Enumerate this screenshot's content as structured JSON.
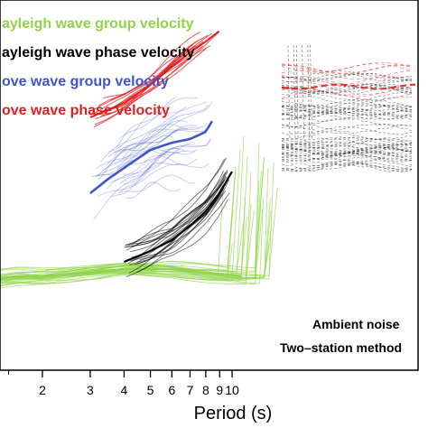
{
  "chart_data": {
    "type": "line",
    "title": "",
    "xlabel": "Period (s)",
    "ylabel": "",
    "x_scale": "log",
    "xlim": [
      1.25,
      20
    ],
    "x_ticks": [
      2,
      3,
      4,
      5,
      6,
      7,
      8,
      9,
      10
    ],
    "x_tick_labels": [
      "2",
      "3",
      "4",
      "5",
      "6",
      "7",
      "8",
      "9",
      "10"
    ],
    "y_axis_shown": false,
    "grid": false,
    "legend_position": "top-left",
    "legend": [
      {
        "label": "ayleigh wave group velocity",
        "color": "#8fd44a"
      },
      {
        "label": "ayleigh wave phase velocity",
        "color": "#000000"
      },
      {
        "label": "ove wave group velocity",
        "color": "#4055c8"
      },
      {
        "label": "ove wave phase velocity",
        "color": "#e02020"
      }
    ],
    "annotations": [
      "Ambient noise",
      "Two–station method"
    ],
    "series": [
      {
        "name": "ayleigh wave group velocity",
        "color": "#8fd44a",
        "mean_x": [
          1.25,
          1.6,
          2.0,
          3.0,
          4.0,
          5.0,
          6.0,
          8.0,
          11.0
        ],
        "mean_y": [
          0.25,
          0.26,
          0.26,
          0.27,
          0.28,
          0.28,
          0.28,
          0.27,
          0.26
        ]
      },
      {
        "name": "ayleigh wave phase velocity",
        "color": "#000000",
        "mean_x": [
          4.0,
          5.0,
          6.0,
          7.0,
          8.0,
          9.0,
          10.0
        ],
        "mean_y": [
          0.3,
          0.33,
          0.36,
          0.4,
          0.44,
          0.49,
          0.55
        ]
      },
      {
        "name": "ove wave group velocity",
        "color": "#4055c8",
        "mean_x": [
          3.0,
          3.5,
          4.0,
          5.0,
          6.0,
          7.0,
          8.0,
          8.6
        ],
        "mean_y": [
          0.49,
          0.53,
          0.56,
          0.61,
          0.63,
          0.64,
          0.66,
          0.7
        ]
      },
      {
        "name": "ove wave phase velocity",
        "color": "#e02020",
        "mean_x": [
          3.0,
          4.0,
          5.0,
          6.0,
          7.0,
          8.0,
          9.0
        ],
        "mean_y": [
          0.7,
          0.74,
          0.79,
          0.84,
          0.88,
          0.91,
          0.94
        ]
      }
    ]
  }
}
